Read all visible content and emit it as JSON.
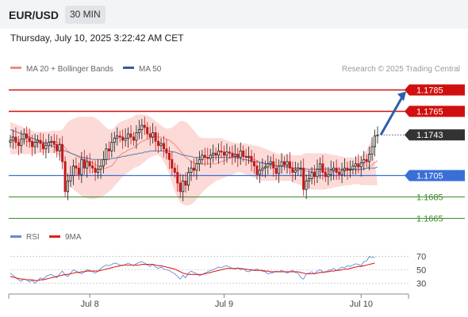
{
  "header": {
    "symbol": "EUR/USD",
    "timeframe": "30 MIN"
  },
  "timestamp": "Thursday, July 10, 2025 3:22:42 AM CET",
  "legend": {
    "items": [
      {
        "label": "MA 20 + Bollinger Bands",
        "color": "#f08a84"
      },
      {
        "label": "MA 50",
        "color": "#2f5e9e"
      }
    ],
    "credit": "Research © 2025 Trading Central"
  },
  "rsi_legend": {
    "items": [
      {
        "label": "RSI",
        "color": "#5b8ed8"
      },
      {
        "label": "9MA",
        "color": "#e02020"
      }
    ]
  },
  "colors": {
    "up": "#1a1a1a",
    "down": "#c01818",
    "resistance": "#d01010",
    "pivot": "#3a6fd8",
    "support": "#3a8a2a",
    "current": "#333333",
    "forecast": "#2b5fa8"
  },
  "chart_data": [
    {
      "type": "candlestick",
      "x_tick_labels": [
        "Jul 8",
        "Jul 9",
        "Jul 10"
      ],
      "ylim": [
        1.1658,
        1.1795
      ],
      "levels": [
        {
          "price": 1.1785,
          "label": "1.1785",
          "role": "resistance"
        },
        {
          "price": 1.1765,
          "label": "1.1765",
          "role": "resistance"
        },
        {
          "price": 1.1743,
          "label": "1.1743",
          "role": "current"
        },
        {
          "price": 1.1705,
          "label": "1.1705",
          "role": "pivot"
        },
        {
          "price": 1.1685,
          "label": "1.1685",
          "role": "support"
        },
        {
          "price": 1.1665,
          "label": "1.1665",
          "role": "support"
        }
      ],
      "forecast_arrow": {
        "from": 1.1743,
        "to": 1.1785
      },
      "close": [
        1.1738,
        1.1741,
        1.1736,
        1.1733,
        1.1739,
        1.1744,
        1.174,
        1.1737,
        1.1732,
        1.1736,
        1.1738,
        1.1735,
        1.173,
        1.1733,
        1.1736,
        1.1737,
        1.1734,
        1.1728,
        1.1734,
        1.1718,
        1.169,
        1.17,
        1.1705,
        1.1714,
        1.1712,
        1.1706,
        1.172,
        1.1712,
        1.1718,
        1.1714,
        1.1712,
        1.1708,
        1.1711,
        1.1714,
        1.172,
        1.173,
        1.1728,
        1.1736,
        1.174,
        1.1742,
        1.1741,
        1.1738,
        1.174,
        1.1744,
        1.1741,
        1.1738,
        1.1745,
        1.1748,
        1.1752,
        1.175,
        1.1744,
        1.1741,
        1.1745,
        1.1737,
        1.1733,
        1.1735,
        1.173,
        1.1726,
        1.172,
        1.1712,
        1.1708,
        1.1698,
        1.169,
        1.17,
        1.1696,
        1.1708,
        1.1712,
        1.171,
        1.1716,
        1.172,
        1.1724,
        1.1722,
        1.1721,
        1.1724,
        1.1726,
        1.1724,
        1.1728,
        1.1727,
        1.1724,
        1.1727,
        1.1726,
        1.1723,
        1.1725,
        1.1722,
        1.1728,
        1.1723,
        1.1722,
        1.1723,
        1.1718,
        1.1714,
        1.1706,
        1.171,
        1.1712,
        1.1713,
        1.1716,
        1.1718,
        1.1712,
        1.1707,
        1.1714,
        1.1718,
        1.1715,
        1.1718,
        1.1712,
        1.1708,
        1.171,
        1.1712,
        1.1712,
        1.1692,
        1.17,
        1.1702,
        1.1708,
        1.1704,
        1.1711,
        1.1716,
        1.1708,
        1.1704,
        1.1706,
        1.171,
        1.1712,
        1.1708,
        1.1706,
        1.171,
        1.1712,
        1.171,
        1.1711,
        1.1714,
        1.1716,
        1.1713,
        1.1717,
        1.172,
        1.1718,
        1.1725,
        1.1732,
        1.1742,
        1.1743
      ],
      "ma20": [
        1.1741,
        1.174,
        1.1739,
        1.1738,
        1.1737,
        1.1737,
        1.1737,
        1.1737,
        1.1736,
        1.1736,
        1.1737,
        1.1737,
        1.1736,
        1.1736,
        1.1736,
        1.1737,
        1.1737,
        1.1736,
        1.1735,
        1.1734,
        1.1731,
        1.1728,
        1.1726,
        1.1725,
        1.1724,
        1.1722,
        1.1721,
        1.172,
        1.1719,
        1.1718,
        1.1717,
        1.1715,
        1.1714,
        1.1713,
        1.1712,
        1.1712,
        1.1713,
        1.1714,
        1.1717,
        1.1721,
        1.1724,
        1.1726,
        1.1727,
        1.1729,
        1.173,
        1.1731,
        1.1733,
        1.1735,
        1.1737,
        1.1738,
        1.1739,
        1.174,
        1.1741,
        1.1741,
        1.1741,
        1.1741,
        1.174,
        1.1739,
        1.1738,
        1.1736,
        1.1734,
        1.1731,
        1.1728,
        1.1725,
        1.1722,
        1.172,
        1.1718,
        1.1717,
        1.1716,
        1.1716,
        1.1716,
        1.1716,
        1.1716,
        1.1716,
        1.1716,
        1.1716,
        1.1717,
        1.1718,
        1.1719,
        1.172,
        1.1721,
        1.1722,
        1.1723,
        1.1723,
        1.1723,
        1.1723,
        1.1722,
        1.1722,
        1.1721,
        1.172,
        1.1719,
        1.1718,
        1.1717,
        1.1716,
        1.1716,
        1.1716,
        1.1715,
        1.1714,
        1.1714,
        1.1714,
        1.1714,
        1.1714,
        1.1713,
        1.1712,
        1.1712,
        1.1712,
        1.1712,
        1.171,
        1.1709,
        1.1709,
        1.1709,
        1.1709,
        1.1709,
        1.1709,
        1.1709,
        1.1709,
        1.1709,
        1.1709,
        1.1709,
        1.1709,
        1.1709,
        1.1709,
        1.1709,
        1.171,
        1.171,
        1.171,
        1.171,
        1.171,
        1.1711,
        1.1711,
        1.1712,
        1.1713,
        1.1715,
        1.1717,
        1.1719
      ],
      "bb_upper": [
        1.1755,
        1.1754,
        1.1753,
        1.1752,
        1.1751,
        1.175,
        1.1749,
        1.1748,
        1.1747,
        1.1746,
        1.1746,
        1.1746,
        1.1746,
        1.1746,
        1.1746,
        1.1747,
        1.1747,
        1.1747,
        1.1747,
        1.1748,
        1.1752,
        1.1755,
        1.1757,
        1.1758,
        1.1759,
        1.176,
        1.176,
        1.176,
        1.176,
        1.176,
        1.176,
        1.1759,
        1.1757,
        1.1755,
        1.1752,
        1.175,
        1.1748,
        1.1748,
        1.175,
        1.1753,
        1.1755,
        1.1756,
        1.1757,
        1.1758,
        1.1759,
        1.176,
        1.1762,
        1.1762,
        1.1762,
        1.1762,
        1.1761,
        1.176,
        1.1758,
        1.1756,
        1.1754,
        1.1752,
        1.175,
        1.1749,
        1.1749,
        1.175,
        1.1752,
        1.1754,
        1.1756,
        1.1756,
        1.1755,
        1.1753,
        1.175,
        1.1747,
        1.1744,
        1.1741,
        1.174,
        1.174,
        1.174,
        1.174,
        1.174,
        1.174,
        1.174,
        1.174,
        1.1739,
        1.1738,
        1.1737,
        1.1736,
        1.1736,
        1.1735,
        1.1735,
        1.1735,
        1.1735,
        1.1734,
        1.1734,
        1.1733,
        1.1733,
        1.1732,
        1.1731,
        1.173,
        1.1729,
        1.1728,
        1.1727,
        1.1726,
        1.1725,
        1.1725,
        1.1725,
        1.1725,
        1.1725,
        1.1724,
        1.1724,
        1.1724,
        1.1724,
        1.1725,
        1.1726,
        1.1726,
        1.1726,
        1.1726,
        1.1726,
        1.1726,
        1.1726,
        1.1726,
        1.1725,
        1.1725,
        1.1724,
        1.1724,
        1.1723,
        1.1723,
        1.1722,
        1.1722,
        1.1722,
        1.1722,
        1.1722,
        1.1723,
        1.1724,
        1.1726,
        1.1729,
        1.1734,
        1.174
      ],
      "bb_lower": [
        1.1725,
        1.1725,
        1.1725,
        1.1725,
        1.1725,
        1.1725,
        1.1725,
        1.1725,
        1.1725,
        1.1725,
        1.1726,
        1.1726,
        1.1726,
        1.1726,
        1.1726,
        1.1726,
        1.1726,
        1.1725,
        1.1723,
        1.172,
        1.171,
        1.1701,
        1.1695,
        1.1692,
        1.169,
        1.1688,
        1.1686,
        1.1685,
        1.1684,
        1.1683,
        1.1683,
        1.1683,
        1.1684,
        1.1685,
        1.1686,
        1.1688,
        1.169,
        1.1692,
        1.1695,
        1.1698,
        1.1701,
        1.1704,
        1.1706,
        1.1708,
        1.171,
        1.1712,
        1.1713,
        1.1714,
        1.1716,
        1.1718,
        1.172,
        1.1722,
        1.1723,
        1.1724,
        1.1724,
        1.1722,
        1.1718,
        1.1713,
        1.1706,
        1.1698,
        1.169,
        1.1684,
        1.168,
        1.1678,
        1.1677,
        1.1677,
        1.1678,
        1.168,
        1.1683,
        1.1686,
        1.1689,
        1.1692,
        1.1694,
        1.1696,
        1.1698,
        1.17,
        1.1701,
        1.1702,
        1.1703,
        1.1704,
        1.1705,
        1.1706,
        1.1707,
        1.1708,
        1.1708,
        1.1707,
        1.1706,
        1.1705,
        1.1704,
        1.1703,
        1.1702,
        1.1701,
        1.17,
        1.17,
        1.17,
        1.17,
        1.17,
        1.17,
        1.17,
        1.17,
        1.17,
        1.17,
        1.17,
        1.1699,
        1.1698,
        1.1697,
        1.1696,
        1.1694,
        1.1693,
        1.1692,
        1.1692,
        1.1692,
        1.1692,
        1.1692,
        1.1692,
        1.1692,
        1.1693,
        1.1693,
        1.1694,
        1.1694,
        1.1695,
        1.1695,
        1.1696,
        1.1696,
        1.1696,
        1.1697,
        1.1697,
        1.1697,
        1.1696,
        1.1696,
        1.1696,
        1.1696,
        1.1696,
        1.1696,
        1.1696
      ],
      "ma50": [
        1.1748,
        1.1747,
        1.1746,
        1.1745,
        1.1744,
        1.1743,
        1.1742,
        1.1741,
        1.174,
        1.1739,
        1.1738,
        1.1737,
        1.1736,
        1.1735,
        1.1734,
        1.1733,
        1.1732,
        1.1731,
        1.173,
        1.1729,
        1.1728,
        1.1727,
        1.1726,
        1.1725,
        1.1724,
        1.1723,
        1.1722,
        1.1722,
        1.1721,
        1.1721,
        1.172,
        1.172,
        1.172,
        1.172,
        1.172,
        1.172,
        1.172,
        1.1721,
        1.1721,
        1.1722,
        1.1722,
        1.1723,
        1.1723,
        1.1724,
        1.1724,
        1.1725,
        1.1725,
        1.1726,
        1.1726,
        1.1727,
        1.1727,
        1.1728,
        1.1728,
        1.1728,
        1.1728,
        1.1728,
        1.1728,
        1.1728,
        1.1728,
        1.1727,
        1.1727,
        1.1726,
        1.1725,
        1.1724,
        1.1724,
        1.1723,
        1.1723,
        1.1722,
        1.1722,
        1.1722,
        1.1722,
        1.1722,
        1.1722,
        1.1722,
        1.1722,
        1.1722,
        1.1722,
        1.1722,
        1.1722,
        1.1722,
        1.1722,
        1.1722,
        1.1722,
        1.1721,
        1.1721,
        1.172,
        1.172,
        1.1719,
        1.1719,
        1.1718,
        1.1718,
        1.1717,
        1.1717,
        1.1716,
        1.1716,
        1.1715,
        1.1715,
        1.1714,
        1.1714,
        1.1714,
        1.1713,
        1.1713,
        1.1713,
        1.1712,
        1.1712,
        1.1712,
        1.1711,
        1.1711,
        1.1711,
        1.1711,
        1.1711,
        1.1711,
        1.1711,
        1.1711,
        1.1711,
        1.1711,
        1.1711,
        1.1711,
        1.1711,
        1.1711,
        1.1711,
        1.1711,
        1.1711,
        1.1711,
        1.1711,
        1.1711,
        1.1711,
        1.1711,
        1.1711,
        1.1711,
        1.1712,
        1.1712,
        1.1712,
        1.1712,
        1.1713
      ]
    },
    {
      "type": "line",
      "series": [
        {
          "name": "RSI",
          "values": [
            45,
            42,
            38,
            35,
            33,
            36,
            35,
            32,
            34,
            30,
            34,
            38,
            36,
            40,
            42,
            43,
            40,
            38,
            44,
            48,
            42,
            40,
            45,
            50,
            48,
            46,
            44,
            47,
            50,
            49,
            47,
            45,
            48,
            52,
            55,
            57,
            56,
            58,
            60,
            59,
            57,
            56,
            58,
            60,
            58,
            56,
            59,
            61,
            62,
            60,
            57,
            55,
            58,
            54,
            52,
            54,
            51,
            50,
            49,
            46,
            44,
            40,
            36,
            42,
            38,
            45,
            48,
            46,
            44,
            41,
            43,
            45,
            47,
            49,
            50,
            52,
            54,
            53,
            55,
            56,
            54,
            52,
            51,
            53,
            50,
            52,
            48,
            47,
            49,
            50,
            51,
            49,
            48,
            47,
            44,
            45,
            46,
            48,
            47,
            49,
            47,
            45,
            47,
            49,
            46,
            45,
            38,
            36,
            44,
            45,
            47,
            44,
            48,
            50,
            47,
            46,
            49,
            50,
            52,
            49,
            51,
            54,
            53,
            56,
            55,
            57,
            59,
            58,
            56,
            62,
            63,
            70,
            68,
            69
          ]
        },
        {
          "name": "9MA",
          "values": [
            40,
            39,
            38,
            37,
            36,
            36,
            35,
            35,
            35,
            34,
            34,
            35,
            35,
            36,
            37,
            38,
            39,
            40,
            41,
            42,
            43,
            43,
            44,
            45,
            46,
            46,
            47,
            47,
            48,
            48,
            48,
            48,
            48,
            49,
            50,
            51,
            52,
            53,
            54,
            55,
            56,
            57,
            57,
            57,
            57,
            57,
            57,
            57,
            58,
            58,
            58,
            58,
            58,
            57,
            56,
            56,
            55,
            54,
            53,
            52,
            51,
            49,
            47,
            45,
            44,
            43,
            43,
            43,
            43,
            43,
            43,
            44,
            45,
            46,
            47,
            48,
            49,
            50,
            51,
            52,
            52,
            52,
            52,
            52,
            52,
            51,
            51,
            50,
            50,
            49,
            49,
            49,
            49,
            48,
            48,
            47,
            47,
            47,
            47,
            47,
            47,
            47,
            47,
            47,
            47,
            47,
            46,
            45,
            44,
            44,
            44,
            44,
            45,
            46,
            46,
            47,
            47,
            48,
            48,
            49,
            49,
            50,
            51,
            51,
            52,
            53,
            54,
            55,
            55,
            56,
            57,
            58,
            59,
            60
          ]
        }
      ],
      "y_tick_labels": [
        "70",
        "50",
        "30"
      ],
      "y_ticks": [
        70,
        50,
        30
      ],
      "ylim": [
        15,
        80
      ]
    }
  ]
}
